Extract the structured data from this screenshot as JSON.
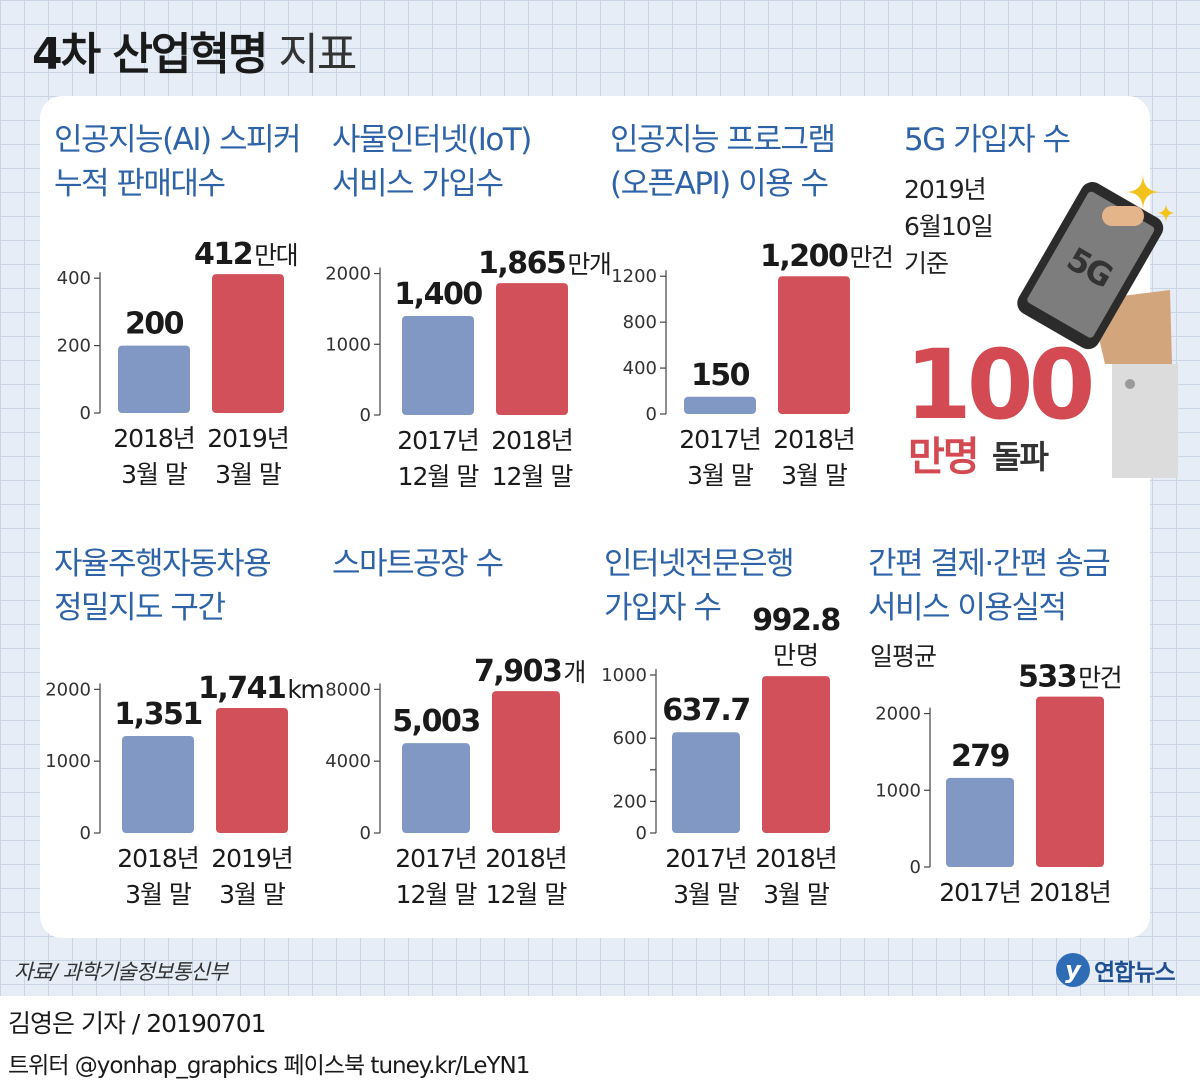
{
  "title": {
    "main": "4차 산업혁명",
    "sub": "지표"
  },
  "colors": {
    "blue": "#8198c4",
    "red": "#d2505a",
    "title_blue": "#2e63a8",
    "big_red": "#d34a52"
  },
  "chart_data": [
    {
      "type": "bar",
      "title": [
        "인공지능(AI) 스피커",
        "누적 판매대수"
      ],
      "categories": [
        [
          "2018년",
          "3월 말"
        ],
        [
          "2019년",
          "3월 말"
        ]
      ],
      "values": [
        200,
        412
      ],
      "value_labels": [
        "200",
        "412"
      ],
      "unit": "만대",
      "ylim": [
        0,
        460
      ],
      "yticks": [
        0,
        200,
        400
      ]
    },
    {
      "type": "bar",
      "title": [
        "사물인터넷(IoT)",
        "서비스 가입수"
      ],
      "categories": [
        [
          "2017년",
          "12월 말"
        ],
        [
          "2018년",
          "12월 말"
        ]
      ],
      "values": [
        1400,
        1865
      ],
      "value_labels": [
        "1,400",
        "1,865"
      ],
      "unit": "만개",
      "ylim": [
        0,
        2220
      ],
      "yticks": [
        0,
        1000,
        2000
      ]
    },
    {
      "type": "bar",
      "title": [
        "인공지능 프로그램",
        "(오픈API) 이용 수"
      ],
      "categories": [
        [
          "2017년",
          "3월 말"
        ],
        [
          "2018년",
          "3월 말"
        ]
      ],
      "values": [
        150,
        1200
      ],
      "value_labels": [
        "150",
        "1,200"
      ],
      "unit": "만건",
      "ylim": [
        0,
        1350
      ],
      "yticks": [
        0,
        400,
        800,
        1200
      ]
    },
    {
      "type": "bar",
      "title": [
        "자율주행자동차용",
        "정밀지도 구간"
      ],
      "categories": [
        [
          "2018년",
          "3월 말"
        ],
        [
          "2019년",
          "3월 말"
        ]
      ],
      "values": [
        1351,
        1741
      ],
      "value_labels": [
        "1,351",
        "1,741"
      ],
      "unit": "km",
      "ylim": [
        0,
        2200
      ],
      "yticks": [
        0,
        1000,
        2000
      ]
    },
    {
      "type": "bar",
      "title": [
        "스마트공장 수"
      ],
      "categories": [
        [
          "2017년",
          "12월 말"
        ],
        [
          "2018년",
          "12월 말"
        ]
      ],
      "values": [
        5003,
        7903
      ],
      "value_labels": [
        "5,003",
        "7,903"
      ],
      "unit": "개",
      "ylim": [
        0,
        8800
      ],
      "yticks": [
        0,
        4000,
        8000
      ]
    },
    {
      "type": "bar",
      "title": [
        "인터넷전문은행",
        "가입자 수"
      ],
      "categories": [
        [
          "2017년",
          "3월 말"
        ],
        [
          "2018년",
          "3월 말"
        ]
      ],
      "values": [
        637.7,
        992.8
      ],
      "value_labels": [
        "637.7",
        "992.8"
      ],
      "unit": "만명",
      "ylim": [
        0,
        1000
      ],
      "yticks": [
        0,
        200,
        600,
        1000
      ]
    },
    {
      "type": "bar",
      "title": [
        "간편 결제·간편 송금",
        "서비스 이용실적"
      ],
      "note": "일평균",
      "categories": [
        [
          "2017년"
        ],
        [
          "2018년"
        ]
      ],
      "values": [
        279,
        533
      ],
      "value_labels": [
        "279",
        "533"
      ],
      "unit": "만건",
      "ylim": [
        0,
        560
      ],
      "yticks": [
        0,
        1000,
        2000
      ],
      "ytick_values": [
        0,
        240,
        480
      ]
    }
  ],
  "highlight": {
    "title": "5G 가입자 수",
    "note": [
      "2019년",
      "6월10일",
      "기준"
    ],
    "value": "100",
    "unit": "만명",
    "tail": "돌파",
    "phone_label": "5G"
  },
  "source": "자료/ 과학기술정보통신부",
  "logo": {
    "mark": "y",
    "name": "연합뉴스"
  },
  "credit": "김영은 기자 / 20190701",
  "social": "트위터 @yonhap_graphics  페이스북 tuney.kr/LeYN1"
}
